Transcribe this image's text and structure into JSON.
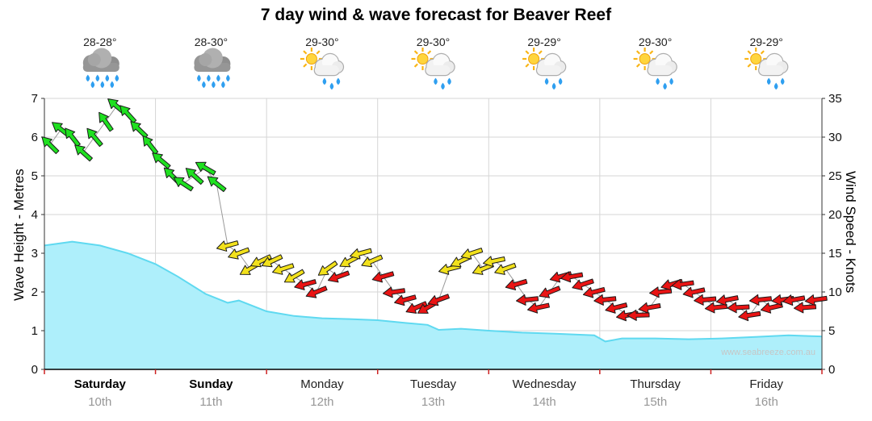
{
  "title": "7 day wind & wave forecast for Beaver Reef",
  "watermark": "www.seabreeze.com.au",
  "axes": {
    "left_label": "Wave Height - Metres",
    "right_label": "Wind Speed - Knots",
    "wave_ticks": [
      0,
      1,
      2,
      3,
      4,
      5,
      6,
      7
    ],
    "wind_ticks": [
      0,
      5,
      10,
      15,
      20,
      25,
      30,
      35
    ]
  },
  "days": [
    {
      "name": "Saturday",
      "date": "10th",
      "temp": "28-28°",
      "icon": "rain",
      "bold": true
    },
    {
      "name": "Sunday",
      "date": "11th",
      "temp": "28-30°",
      "icon": "rain",
      "bold": true
    },
    {
      "name": "Monday",
      "date": "12th",
      "temp": "29-30°",
      "icon": "sun_shower",
      "bold": false
    },
    {
      "name": "Tuesday",
      "date": "13th",
      "temp": "29-30°",
      "icon": "sun_shower",
      "bold": false
    },
    {
      "name": "Wednesday",
      "date": "14th",
      "temp": "29-29°",
      "icon": "sun_shower",
      "bold": false
    },
    {
      "name": "Thursday",
      "date": "15th",
      "temp": "29-30°",
      "icon": "sun_shower",
      "bold": false
    },
    {
      "name": "Friday",
      "date": "16th",
      "temp": "29-29°",
      "icon": "sun_shower",
      "bold": false
    }
  ],
  "chart_data": {
    "type": "area",
    "overlay": "wind-direction-arrows",
    "title": "7 day wind & wave forecast for Beaver Reef",
    "x_unit": "days",
    "x_categories": [
      "Saturday 10th",
      "Sunday 11th",
      "Monday 12th",
      "Tuesday 13th",
      "Wednesday 14th",
      "Thursday 15th",
      "Friday 16th"
    ],
    "legend": "arrow color = wind strength: green fresh, yellow moderate, red light",
    "wave_height_m": {
      "ylabel": "Wave Height - Metres",
      "ylim": [
        0,
        7
      ],
      "fill_color": "#aeeffb",
      "line_color": "#5fd9f0",
      "x_days": [
        0,
        0.25,
        0.5,
        0.75,
        1.0,
        1.2,
        1.45,
        1.65,
        1.75,
        2.0,
        2.25,
        2.5,
        2.75,
        3.0,
        3.25,
        3.45,
        3.55,
        3.75,
        4.0,
        4.3,
        4.6,
        4.95,
        5.05,
        5.2,
        5.5,
        5.8,
        6.1,
        6.4,
        6.7,
        6.9,
        7.0
      ],
      "values": [
        3.2,
        3.3,
        3.2,
        3.0,
        2.72,
        2.4,
        1.95,
        1.72,
        1.78,
        1.5,
        1.38,
        1.32,
        1.3,
        1.27,
        1.2,
        1.15,
        1.02,
        1.05,
        1.0,
        0.95,
        0.92,
        0.88,
        0.72,
        0.8,
        0.8,
        0.78,
        0.8,
        0.84,
        0.88,
        0.86,
        0.85
      ]
    },
    "wind_knots": {
      "ylabel": "Wind Speed - Knots",
      "ylim": [
        0,
        35
      ],
      "samples_per_day": 10,
      "speed_color_map": {
        "g": "#1fe020",
        "y": "#f2e11c",
        "r": "#e91414"
      },
      "values": [
        29,
        31,
        30,
        28,
        30,
        32,
        34,
        33,
        31,
        29,
        27,
        25,
        24,
        25,
        26,
        24,
        16,
        15,
        13,
        14,
        14,
        13,
        12,
        11,
        10,
        13,
        12,
        14,
        15,
        14,
        12,
        10,
        9,
        8,
        8,
        9,
        13,
        14,
        15,
        13,
        14,
        13,
        11,
        9,
        8,
        10,
        12,
        12,
        11,
        10,
        9,
        8,
        7,
        7,
        8,
        10,
        11,
        11,
        10,
        9,
        8,
        9,
        8,
        7,
        9,
        8,
        9,
        9,
        8,
        9
      ],
      "colors": [
        "g",
        "g",
        "g",
        "g",
        "g",
        "g",
        "g",
        "g",
        "g",
        "g",
        "g",
        "g",
        "g",
        "g",
        "g",
        "g",
        "y",
        "y",
        "y",
        "y",
        "y",
        "y",
        "y",
        "r",
        "r",
        "y",
        "r",
        "y",
        "y",
        "y",
        "r",
        "r",
        "r",
        "r",
        "r",
        "r",
        "y",
        "y",
        "y",
        "y",
        "y",
        "y",
        "r",
        "r",
        "r",
        "r",
        "r",
        "r",
        "r",
        "r",
        "r",
        "r",
        "r",
        "r",
        "r",
        "r",
        "r",
        "r",
        "r",
        "r",
        "r",
        "r",
        "r",
        "r",
        "r",
        "r",
        "r",
        "r",
        "r",
        "r"
      ],
      "directions_deg": [
        135,
        142,
        128,
        138,
        130,
        125,
        140,
        132,
        136,
        128,
        140,
        135,
        147,
        138,
        150,
        142,
        195,
        200,
        210,
        205,
        205,
        198,
        210,
        195,
        202,
        215,
        200,
        208,
        195,
        203,
        196,
        188,
        195,
        203,
        210,
        200,
        194,
        205,
        198,
        202,
        192,
        200,
        196,
        186,
        192,
        202,
        196,
        190,
        198,
        194,
        186,
        194,
        190,
        182,
        190,
        186,
        196,
        188,
        192,
        185,
        186,
        191,
        183,
        189,
        186,
        193,
        187,
        190,
        184,
        188
      ]
    }
  }
}
